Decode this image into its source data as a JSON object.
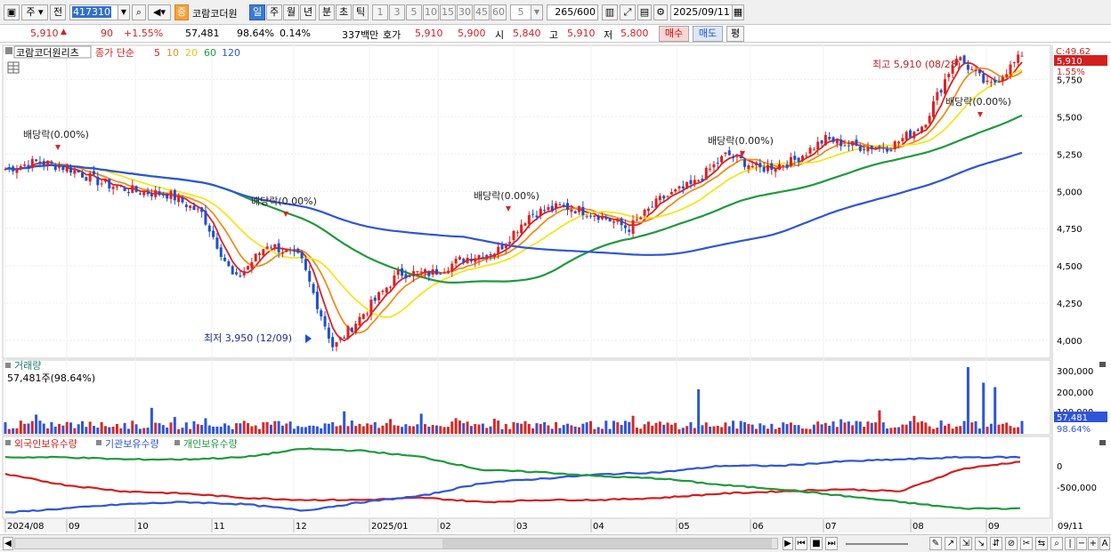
{
  "toolbar": {
    "type_btn": "주",
    "prev_btn": "전",
    "code_value": "417310",
    "stock_badge": "증",
    "stock_name": "코람코더원",
    "periods": [
      "일",
      "주",
      "월",
      "년",
      "분",
      "초",
      "틱"
    ],
    "intervals": [
      "1",
      "3",
      "5",
      "10",
      "15",
      "30",
      "45",
      "60"
    ],
    "interval_value": "5",
    "count_value": "265",
    "count_total": "/600",
    "date_value": "2025/09/11"
  },
  "quote": {
    "price": "5,910",
    "change": "90",
    "change_pct": "+1.55%",
    "volume": "57,481",
    "volume_pct": "98.64%",
    "turnover_pct": "0.14%",
    "amount": "337백만",
    "bid_label": "호가",
    "bid1": "5,910",
    "bid2": "5,900",
    "open_label": "시",
    "open": "5,840",
    "high_label": "고",
    "high": "5,910",
    "low_label": "저",
    "low": "5,800",
    "buy_btn": "매수",
    "sell_btn": "매도",
    "eval_btn": "평"
  },
  "price_panel": {
    "title": "코람코더원리츠",
    "ma_label": "종가 단순",
    "ma_periods": [
      "5",
      "10",
      "20",
      "60",
      "120"
    ],
    "ma_colors": [
      "#e02020",
      "#f08c1e",
      "#f5e51c",
      "#1e9a3c",
      "#2f55d8"
    ],
    "y_ticks": [
      "5,750",
      "5,500",
      "5,250",
      "5,000",
      "4,750",
      "4,500",
      "4,250",
      "4,000"
    ],
    "axis_top_label": "C:49.62",
    "current_price_tag": "5,910",
    "current_pct_tag": "1.55%",
    "high_annotation": "최고 5,910 (08/28)",
    "low_annotation": "최저 3,950 (12/09)",
    "dividend_label": "배당락(0.00%)"
  },
  "volume_panel": {
    "title": "거래량",
    "summary": "57,481주(98.64%)",
    "y_ticks": [
      "300,000",
      "200,000",
      "100,000"
    ],
    "tag_value": "57,481",
    "tag_pct": "98.64%"
  },
  "holding_panel": {
    "legends": [
      {
        "label": "외국인보유수량",
        "color": "#d41f1f"
      },
      {
        "label": "기관보유수량",
        "color": "#2f55d8"
      },
      {
        "label": "개인보유수량",
        "color": "#1e9a3c"
      }
    ],
    "y_ticks": [
      "0",
      "-500,000"
    ]
  },
  "x_axis": {
    "labels": [
      "2024/08",
      "09",
      "10",
      "11",
      "12",
      "2025/01",
      "02",
      "03",
      "04",
      "05",
      "06",
      "07",
      "08",
      "09"
    ],
    "end_label": "09/11"
  },
  "chart_data": {
    "type": "candlestick",
    "title": "코람코더원리츠",
    "x_range": [
      "2024/08",
      "2025/09/11"
    ],
    "price_ylim": [
      3880,
      5980
    ],
    "close_points": [
      [
        "2024/08",
        5150
      ],
      [
        "2024/08 late",
        5200
      ],
      [
        "2024/09",
        5150
      ],
      [
        "2024/09 mid",
        5050
      ],
      [
        "2024/10",
        5000
      ],
      [
        "2024/10 mid",
        4980
      ],
      [
        "2024/11",
        4850
      ],
      [
        "2024/11 mid",
        4400
      ],
      [
        "2024/11 late",
        4650
      ],
      [
        "2024/12",
        4550
      ],
      [
        "2024/12/09",
        3950
      ],
      [
        "2024/12 late",
        4200
      ],
      [
        "2025/01",
        4450
      ],
      [
        "2025/01 mid",
        4450
      ],
      [
        "2025/02",
        4550
      ],
      [
        "2025/02 late",
        4600
      ],
      [
        "2025/03",
        4850
      ],
      [
        "2025/03 mid",
        4900
      ],
      [
        "2025/04",
        4850
      ],
      [
        "2025/04 mid",
        4750
      ],
      [
        "2025/04 late",
        4950
      ],
      [
        "2025/05",
        5050
      ],
      [
        "2025/05 mid",
        5250
      ],
      [
        "2025/06",
        5150
      ],
      [
        "2025/06 mid",
        5200
      ],
      [
        "2025/07",
        5350
      ],
      [
        "2025/07 mid",
        5300
      ],
      [
        "2025/08",
        5300
      ],
      [
        "2025/08 mid",
        5450
      ],
      [
        "2025/08/28",
        5910
      ],
      [
        "2025/09",
        5700
      ],
      [
        "2025/09/11",
        5910
      ]
    ],
    "high": {
      "date": "08/28",
      "value": 5910
    },
    "low": {
      "date": "12/09",
      "value": 3950
    },
    "volume_ylim": [
      0,
      320000
    ],
    "last_volume": 57481,
    "series": [
      {
        "name": "5",
        "type": "ma"
      },
      {
        "name": "10",
        "type": "ma"
      },
      {
        "name": "20",
        "type": "ma"
      },
      {
        "name": "60",
        "type": "ma"
      },
      {
        "name": "120",
        "type": "ma"
      },
      {
        "name": "외국인보유수량",
        "type": "line"
      },
      {
        "name": "기관보유수량",
        "type": "line"
      },
      {
        "name": "개인보유수량",
        "type": "line"
      }
    ]
  }
}
